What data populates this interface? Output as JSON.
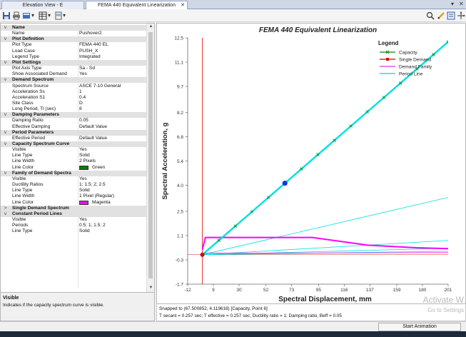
{
  "tabs": [
    {
      "label": "Elevation View - E",
      "active": false
    },
    {
      "label": "FEMA 440 Equivalent Linearization",
      "active": true
    }
  ],
  "property_grid": {
    "rows": [
      {
        "type": "cat",
        "label": "Name",
        "expand": "v"
      },
      {
        "type": "prop",
        "label": "Name",
        "value": "Pushover2"
      },
      {
        "type": "cat",
        "label": "Plot Definition",
        "expand": "v"
      },
      {
        "type": "prop",
        "label": "Plot Type",
        "value": "FEMA 440 EL"
      },
      {
        "type": "prop",
        "label": "Load Case",
        "value": "PUSH_X"
      },
      {
        "type": "prop",
        "label": "Legend Type",
        "value": "Integrated"
      },
      {
        "type": "cat",
        "label": "Plot Settings",
        "expand": "v"
      },
      {
        "type": "prop",
        "label": "Plot Axis Type",
        "value": "Sa - Sd"
      },
      {
        "type": "prop",
        "label": "Show Associated Demand",
        "value": "Yes"
      },
      {
        "type": "cat",
        "label": "Demand Spectrum",
        "expand": "v"
      },
      {
        "type": "prop",
        "label": "Spectrum Source",
        "value": "ASCE 7-10 General"
      },
      {
        "type": "prop",
        "label": "Acceleration Ss",
        "value": "1"
      },
      {
        "type": "prop",
        "label": "Acceleration S1",
        "value": "0.4"
      },
      {
        "type": "prop",
        "label": "Site Class",
        "value": "D"
      },
      {
        "type": "prop",
        "label": "Long Period, Tl (sec)",
        "value": "8"
      },
      {
        "type": "cat",
        "label": "Damping Parameters",
        "expand": "v"
      },
      {
        "type": "prop",
        "label": "Damping Ratio",
        "value": "0.05"
      },
      {
        "type": "prop",
        "label": "Effective Damping",
        "value": "Default Value"
      },
      {
        "type": "cat",
        "label": "Period Parameters",
        "expand": "v"
      },
      {
        "type": "prop",
        "label": "Effective Period",
        "value": "Default Value"
      },
      {
        "type": "cat",
        "label": "Capacity Spectrum Curve",
        "expand": "v"
      },
      {
        "type": "prop",
        "label": "Visible",
        "value": "Yes"
      },
      {
        "type": "prop",
        "label": "Line Type",
        "value": "Solid"
      },
      {
        "type": "prop",
        "label": "Line Width",
        "value": "2 Pixels"
      },
      {
        "type": "prop",
        "label": "Line Color",
        "value": "Green",
        "swatch": "#0a7a0a"
      },
      {
        "type": "cat",
        "label": "Family of Demand Spectra",
        "expand": "v"
      },
      {
        "type": "prop",
        "label": "Visible",
        "value": "Yes"
      },
      {
        "type": "prop",
        "label": "Ductility Ratios",
        "value": "1; 1.5; 2; 2.5"
      },
      {
        "type": "prop",
        "label": "Line Type",
        "value": "Solid"
      },
      {
        "type": "prop",
        "label": "Line Width",
        "value": "1 Pixel (Regular)"
      },
      {
        "type": "prop",
        "label": "Line Color",
        "value": "Magenta",
        "swatch": "#ff00ff"
      },
      {
        "type": "cat",
        "label": "Single Demand Spectrum",
        "expand": ">"
      },
      {
        "type": "cat",
        "label": "Constant Period Lines",
        "expand": "v"
      },
      {
        "type": "prop",
        "label": "Visible",
        "value": "Yes"
      },
      {
        "type": "prop",
        "label": "Periods",
        "value": "0.5; 1; 1.5; 2"
      },
      {
        "type": "prop",
        "label": "Line Type",
        "value": "Solid"
      }
    ]
  },
  "help": {
    "title": "Visible",
    "description": "Indicates if the capacity spectrum curve is visible."
  },
  "status": {
    "snap": "Snapped to (67.500852, 4.119618)  [Capacity, Point 6]",
    "info": "T secant = 0.257 sec;  T effective = 0.257 sec;  Ductility ratio = 1;  Damping ratio, Beff = 0.05"
  },
  "watermark": {
    "line1": "Activate W",
    "line2": "Go to Settings"
  },
  "start_animation_label": "Start Animation",
  "chart_data": {
    "type": "line",
    "title": "FEMA 440 Equivalent Linearization",
    "xlabel": "Spectral Displacement, mm",
    "ylabel": "Spectral Acceleration, g",
    "xlim": [
      -12,
      201
    ],
    "ylim": [
      -1.7,
      12.5
    ],
    "x_ticks": [
      "-12",
      "9",
      "30",
      "52",
      "73",
      "95",
      "116",
      "137",
      "159",
      "180",
      "201"
    ],
    "y_ticks": [
      "12.5",
      "11.1",
      "9.7",
      "8.2",
      "6.8",
      "5.4",
      "4.0",
      "2.5",
      "1.1",
      "-0.3",
      "-1.7"
    ],
    "legend": {
      "title": "Legend",
      "position": "top-right",
      "entries": [
        {
          "name": "Capacity",
          "color": "#0a8a0a"
        },
        {
          "name": "Single Demand",
          "color": "#e00000"
        },
        {
          "name": "Demand Family",
          "color": "#e000e0"
        },
        {
          "name": "Period Line",
          "color": "#00d8d8"
        }
      ]
    },
    "colors": {
      "capacity": "#00e0e0",
      "capacity_marker": "#0a8a0a",
      "demand": "#ff00ff",
      "period": "#00e0e0",
      "single_demand": "#e00000",
      "point": "#0a3ad8"
    },
    "series": [
      {
        "name": "Capacity",
        "x": [
          0,
          13.5,
          27,
          40.5,
          54,
          67.5,
          81,
          94.5,
          108,
          121.5,
          135,
          148.5,
          162,
          175.5,
          189,
          201
        ],
        "y": [
          0,
          0.824,
          1.648,
          2.472,
          3.296,
          4.12,
          4.944,
          5.768,
          6.592,
          7.416,
          8.24,
          9.064,
          9.888,
          10.712,
          11.536,
          12.27
        ]
      },
      {
        "name": "Demand Family",
        "x": [
          0,
          2.5,
          45,
          90,
          135,
          175,
          201
        ],
        "y": [
          0.3,
          0.99,
          0.99,
          0.99,
          0.55,
          0.4,
          0.35
        ]
      },
      {
        "name": "Single Demand",
        "x": [
          0,
          201
        ],
        "y": [
          0,
          0
        ]
      }
    ],
    "period_lines": [
      {
        "x": [
          0,
          201
        ],
        "y": [
          0,
          3.3
        ]
      },
      {
        "x": [
          0,
          201
        ],
        "y": [
          0,
          0.82
        ]
      },
      {
        "x": [
          0,
          201
        ],
        "y": [
          0,
          0.37
        ]
      },
      {
        "x": [
          0,
          201
        ],
        "y": [
          0,
          0.2
        ]
      }
    ],
    "selected_point": {
      "x": 67.500852,
      "y": 4.119618
    },
    "grid": false
  }
}
